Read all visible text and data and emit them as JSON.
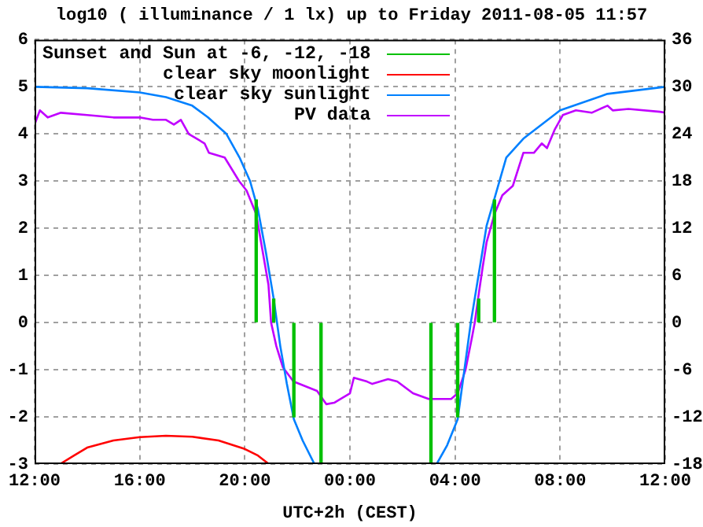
{
  "chart_data": {
    "type": "line",
    "title": "log10 ( illuminance / 1 lx) up to Friday 2011-08-05 11:57",
    "xlabel": "UTC+2h (CEST)",
    "xlim": [
      "2011-08-04T12:00",
      "2011-08-05T12:00"
    ],
    "xticks": [
      {
        "value": "2011-08-04T12:00",
        "label": "12:00"
      },
      {
        "value": "2011-08-04T16:00",
        "label": "16:00"
      },
      {
        "value": "2011-08-04T20:00",
        "label": "20:00"
      },
      {
        "value": "2011-08-05T00:00",
        "label": "00:00"
      },
      {
        "value": "2011-08-05T04:00",
        "label": "04:00"
      },
      {
        "value": "2011-08-05T08:00",
        "label": "08:00"
      },
      {
        "value": "2011-08-05T12:00",
        "label": "12:00"
      }
    ],
    "ylim": [
      -3,
      6
    ],
    "yticks": [
      -3,
      -2,
      -1,
      0,
      1,
      2,
      3,
      4,
      5,
      6
    ],
    "y2lim": [
      -18,
      36
    ],
    "y2ticks": [
      -18,
      -12,
      -6,
      0,
      6,
      12,
      18,
      24,
      30,
      36
    ],
    "grid": true,
    "legend": "top left",
    "marker": "none",
    "line_style": "solid",
    "series": [
      {
        "name": "Sunset and Sun at -6, -12, -18",
        "type": "bar",
        "color": "#00c000",
        "x": [
          "2011-08-04T20:26",
          "2011-08-04T21:06",
          "2011-08-04T21:52",
          "2011-08-04T22:54",
          "2011-08-05T03:05",
          "2011-08-05T04:06",
          "2011-08-05T04:54",
          "2011-08-05T05:30"
        ],
        "values": [
          2.6,
          0.5,
          -2,
          -3,
          -3,
          -2,
          0.5,
          2.6
        ]
      },
      {
        "name": "clear sky moonlight",
        "color": "#ff0000",
        "x": [
          "2011-08-04T12:58",
          "2011-08-04T13:30",
          "2011-08-04T14:00",
          "2011-08-04T15:00",
          "2011-08-04T16:00",
          "2011-08-04T17:00",
          "2011-08-04T18:00",
          "2011-08-04T19:00",
          "2011-08-04T20:00",
          "2011-08-04T20:30",
          "2011-08-04T20:55"
        ],
        "values": [
          -3,
          -2.82,
          -2.65,
          -2.5,
          -2.43,
          -2.4,
          -2.42,
          -2.5,
          -2.68,
          -2.82,
          -3
        ]
      },
      {
        "name": "clear sky sunlight",
        "color": "#0080ff",
        "x": [
          "2011-08-04T12:00",
          "2011-08-04T14:00",
          "2011-08-04T16:00",
          "2011-08-04T17:00",
          "2011-08-04T18:00",
          "2011-08-04T18:36",
          "2011-08-04T19:18",
          "2011-08-04T19:48",
          "2011-08-04T20:12",
          "2011-08-04T20:30",
          "2011-08-04T20:48",
          "2011-08-04T21:06",
          "2011-08-04T21:21",
          "2011-08-04T21:36",
          "2011-08-04T21:52",
          "2011-08-04T22:12",
          "2011-08-04T22:39",
          "2011-08-05T03:18",
          "2011-08-05T03:42",
          "2011-08-05T04:06",
          "2011-08-05T04:36",
          "2011-08-05T05:12",
          "2011-08-05T05:57",
          "2011-08-05T06:36",
          "2011-08-05T08:00",
          "2011-08-05T09:48",
          "2011-08-05T12:00"
        ],
        "values": [
          5,
          4.97,
          4.88,
          4.78,
          4.6,
          4.35,
          4,
          3.5,
          3,
          2.4,
          1.5,
          0.5,
          -0.5,
          -1.3,
          -2.05,
          -2.5,
          -3,
          -3,
          -2.6,
          -2.05,
          0,
          2.05,
          3.5,
          3.9,
          4.5,
          4.85,
          5
        ]
      },
      {
        "name": "PV data",
        "color": "#c000ff",
        "x": [
          "2011-08-04T12:00",
          "2011-08-04T12:12",
          "2011-08-04T12:30",
          "2011-08-04T13:00",
          "2011-08-04T14:00",
          "2011-08-04T15:00",
          "2011-08-04T16:00",
          "2011-08-04T16:30",
          "2011-08-04T17:00",
          "2011-08-04T17:18",
          "2011-08-04T17:34",
          "2011-08-04T17:52",
          "2011-08-04T18:28",
          "2011-08-04T18:38",
          "2011-08-04T19:14",
          "2011-08-04T19:47",
          "2011-08-04T20:04",
          "2011-08-04T20:26",
          "2011-08-04T20:40",
          "2011-08-04T20:54",
          "2011-08-04T21:00",
          "2011-08-04T21:12",
          "2011-08-04T21:27",
          "2011-08-04T21:51",
          "2011-08-04T22:45",
          "2011-08-04T23:06",
          "2011-08-04T23:24",
          "2011-08-05T00:00",
          "2011-08-05T00:09",
          "2011-08-05T00:39",
          "2011-08-05T00:51",
          "2011-08-05T01:27",
          "2011-08-05T01:48",
          "2011-08-05T02:24",
          "2011-08-05T03:00",
          "2011-08-05T03:51",
          "2011-08-05T04:06",
          "2011-08-05T04:24",
          "2011-08-05T04:39",
          "2011-08-05T04:45",
          "2011-08-05T04:54",
          "2011-08-05T05:03",
          "2011-08-05T05:12",
          "2011-08-05T05:30",
          "2011-08-05T05:48",
          "2011-08-05T06:12",
          "2011-08-05T06:36",
          "2011-08-05T07:00",
          "2011-08-05T07:18",
          "2011-08-05T07:30",
          "2011-08-05T07:48",
          "2011-08-05T08:06",
          "2011-08-05T08:36",
          "2011-08-05T09:12",
          "2011-08-05T09:48",
          "2011-08-05T10:00",
          "2011-08-05T10:36",
          "2011-08-05T11:48",
          "2011-08-05T12:00"
        ],
        "values": [
          4.2,
          4.5,
          4.35,
          4.45,
          4.4,
          4.35,
          4.35,
          4.3,
          4.3,
          4.2,
          4.3,
          4,
          3.8,
          3.6,
          3.5,
          3,
          2.8,
          2.3,
          1.55,
          0.8,
          0,
          -0.5,
          -0.95,
          -1.25,
          -1.45,
          -1.73,
          -1.7,
          -1.5,
          -1.17,
          -1.25,
          -1.3,
          -1.2,
          -1.25,
          -1.5,
          -1.62,
          -1.62,
          -1.5,
          -1,
          -0.3,
          0,
          0.6,
          1.17,
          1.7,
          2.3,
          2.7,
          2.9,
          3.6,
          3.6,
          3.8,
          3.7,
          4.1,
          4.4,
          4.5,
          4.45,
          4.6,
          4.5,
          4.53,
          4.47,
          4.45
        ]
      }
    ]
  }
}
